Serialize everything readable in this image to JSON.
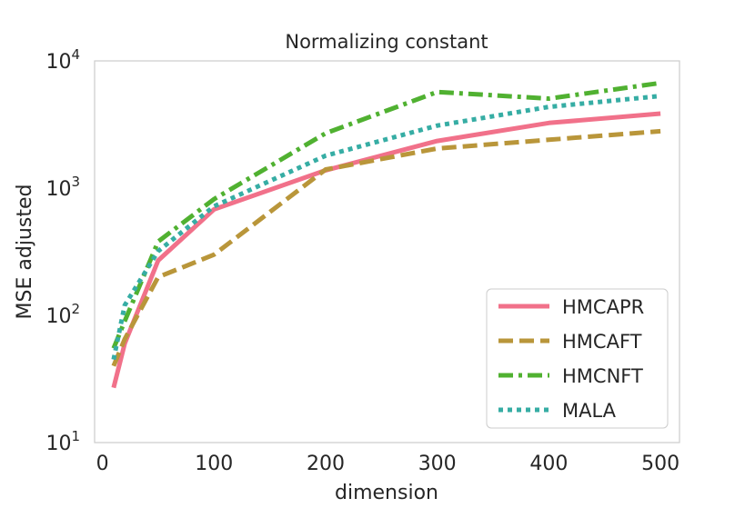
{
  "chart_data": {
    "type": "line",
    "title": "Normalizing constant",
    "xlabel": "dimension",
    "ylabel": "MSE adjusted",
    "yscale": "log",
    "xlim": [
      -7,
      517
    ],
    "ylim": [
      10,
      10000
    ],
    "xticks": [
      0,
      100,
      200,
      300,
      400,
      500
    ],
    "xtick_labels": [
      "0",
      "100",
      "200",
      "300",
      "400",
      "500"
    ],
    "yticks": [
      10,
      100,
      1000,
      10000
    ],
    "ytick_labels": [
      {
        "base": "10",
        "exp": "1"
      },
      {
        "base": "10",
        "exp": "2"
      },
      {
        "base": "10",
        "exp": "3"
      },
      {
        "base": "10",
        "exp": "4"
      }
    ],
    "grid": false,
    "legend_position": "lower-right",
    "x": [
      10,
      20,
      50,
      100,
      200,
      300,
      400,
      500
    ],
    "series": [
      {
        "name": "HMCAPR",
        "color": "#f1718a",
        "dash": "solid",
        "values": [
          27,
          60,
          270,
          680,
          1380,
          2350,
          3250,
          3850
        ]
      },
      {
        "name": "HMCAFT",
        "color": "#b9963a",
        "dash": "dashed",
        "values": [
          40,
          65,
          200,
          300,
          1400,
          2050,
          2400,
          2800
        ]
      },
      {
        "name": "HMCNFT",
        "color": "#50b131",
        "dash": "dashdot",
        "values": [
          55,
          90,
          380,
          820,
          2700,
          5700,
          5050,
          6700
        ]
      },
      {
        "name": "MALA",
        "color": "#36ada4",
        "dash": "dotted",
        "values": [
          45,
          120,
          320,
          720,
          1800,
          3100,
          4350,
          5300
        ]
      }
    ]
  }
}
